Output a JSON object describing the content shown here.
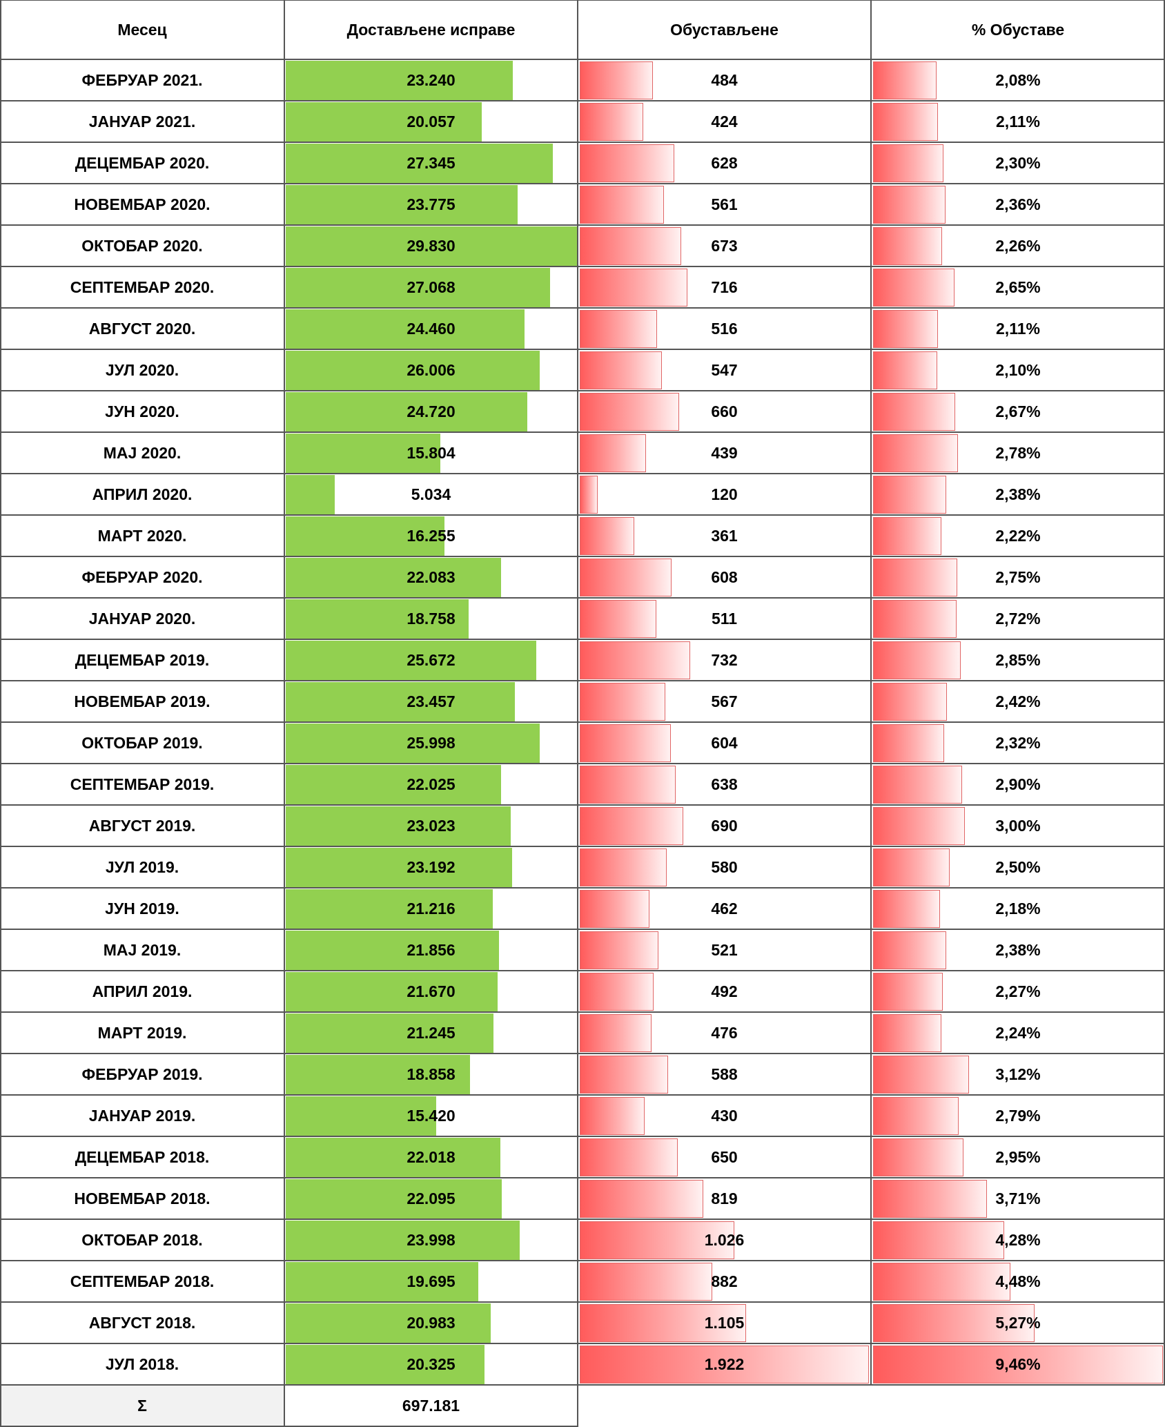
{
  "chart_data": {
    "type": "table",
    "columns": [
      "Месец",
      "Достављене исправе",
      "Обустављене",
      "% Обуставе"
    ],
    "rows": [
      {
        "month": "ФЕБРУАР 2021.",
        "delivered": 23240,
        "delivered_label": "23.240",
        "suspended": 484,
        "suspended_label": "484",
        "pct": 2.08,
        "pct_label": "2,08%"
      },
      {
        "month": "JАНУАР 2021.",
        "delivered": 20057,
        "delivered_label": "20.057",
        "suspended": 424,
        "suspended_label": "424",
        "pct": 2.11,
        "pct_label": "2,11%"
      },
      {
        "month": "ДЕЦЕМБАР 2020.",
        "delivered": 27345,
        "delivered_label": "27.345",
        "suspended": 628,
        "suspended_label": "628",
        "pct": 2.3,
        "pct_label": "2,30%"
      },
      {
        "month": "НОВЕМБАР 2020.",
        "delivered": 23775,
        "delivered_label": "23.775",
        "suspended": 561,
        "suspended_label": "561",
        "pct": 2.36,
        "pct_label": "2,36%"
      },
      {
        "month": "ОКТОБАР 2020.",
        "delivered": 29830,
        "delivered_label": "29.830",
        "suspended": 673,
        "suspended_label": "673",
        "pct": 2.26,
        "pct_label": "2,26%"
      },
      {
        "month": "СЕПТЕМБАР 2020.",
        "delivered": 27068,
        "delivered_label": "27.068",
        "suspended": 716,
        "suspended_label": "716",
        "pct": 2.65,
        "pct_label": "2,65%"
      },
      {
        "month": "АВГУСТ 2020.",
        "delivered": 24460,
        "delivered_label": "24.460",
        "suspended": 516,
        "suspended_label": "516",
        "pct": 2.11,
        "pct_label": "2,11%"
      },
      {
        "month": "ЈУЛ 2020.",
        "delivered": 26006,
        "delivered_label": "26.006",
        "suspended": 547,
        "suspended_label": "547",
        "pct": 2.1,
        "pct_label": "2,10%"
      },
      {
        "month": "ЈУН 2020.",
        "delivered": 24720,
        "delivered_label": "24.720",
        "suspended": 660,
        "suspended_label": "660",
        "pct": 2.67,
        "pct_label": "2,67%"
      },
      {
        "month": "МАЈ 2020.",
        "delivered": 15804,
        "delivered_label": "15.804",
        "suspended": 439,
        "suspended_label": "439",
        "pct": 2.78,
        "pct_label": "2,78%"
      },
      {
        "month": "АПРИЛ 2020.",
        "delivered": 5034,
        "delivered_label": "5.034",
        "suspended": 120,
        "suspended_label": "120",
        "pct": 2.38,
        "pct_label": "2,38%"
      },
      {
        "month": "МАРТ 2020.",
        "delivered": 16255,
        "delivered_label": "16.255",
        "suspended": 361,
        "suspended_label": "361",
        "pct": 2.22,
        "pct_label": "2,22%"
      },
      {
        "month": "ФЕБРУАР 2020.",
        "delivered": 22083,
        "delivered_label": "22.083",
        "suspended": 608,
        "suspended_label": "608",
        "pct": 2.75,
        "pct_label": "2,75%"
      },
      {
        "month": "JАНУАР 2020.",
        "delivered": 18758,
        "delivered_label": "18.758",
        "suspended": 511,
        "suspended_label": "511",
        "pct": 2.72,
        "pct_label": "2,72%"
      },
      {
        "month": "ДЕЦЕМБАР 2019.",
        "delivered": 25672,
        "delivered_label": "25.672",
        "suspended": 732,
        "suspended_label": "732",
        "pct": 2.85,
        "pct_label": "2,85%"
      },
      {
        "month": "НОВЕМБАР 2019.",
        "delivered": 23457,
        "delivered_label": "23.457",
        "suspended": 567,
        "suspended_label": "567",
        "pct": 2.42,
        "pct_label": "2,42%"
      },
      {
        "month": "ОКТОБАР 2019.",
        "delivered": 25998,
        "delivered_label": "25.998",
        "suspended": 604,
        "suspended_label": "604",
        "pct": 2.32,
        "pct_label": "2,32%"
      },
      {
        "month": "СЕПТЕМБАР 2019.",
        "delivered": 22025,
        "delivered_label": "22.025",
        "suspended": 638,
        "suspended_label": "638",
        "pct": 2.9,
        "pct_label": "2,90%"
      },
      {
        "month": "АВГУСТ 2019.",
        "delivered": 23023,
        "delivered_label": "23.023",
        "suspended": 690,
        "suspended_label": "690",
        "pct": 3.0,
        "pct_label": "3,00%"
      },
      {
        "month": "ЈУЛ 2019.",
        "delivered": 23192,
        "delivered_label": "23.192",
        "suspended": 580,
        "suspended_label": "580",
        "pct": 2.5,
        "pct_label": "2,50%"
      },
      {
        "month": "ЈУН 2019.",
        "delivered": 21216,
        "delivered_label": "21.216",
        "suspended": 462,
        "suspended_label": "462",
        "pct": 2.18,
        "pct_label": "2,18%"
      },
      {
        "month": "МАЈ 2019.",
        "delivered": 21856,
        "delivered_label": "21.856",
        "suspended": 521,
        "suspended_label": "521",
        "pct": 2.38,
        "pct_label": "2,38%"
      },
      {
        "month": "АПРИЛ 2019.",
        "delivered": 21670,
        "delivered_label": "21.670",
        "suspended": 492,
        "suspended_label": "492",
        "pct": 2.27,
        "pct_label": "2,27%"
      },
      {
        "month": "МАРТ 2019.",
        "delivered": 21245,
        "delivered_label": "21.245",
        "suspended": 476,
        "suspended_label": "476",
        "pct": 2.24,
        "pct_label": "2,24%"
      },
      {
        "month": "ФЕБРУАР 2019.",
        "delivered": 18858,
        "delivered_label": "18.858",
        "suspended": 588,
        "suspended_label": "588",
        "pct": 3.12,
        "pct_label": "3,12%"
      },
      {
        "month": "JАНУАР 2019.",
        "delivered": 15420,
        "delivered_label": "15.420",
        "suspended": 430,
        "suspended_label": "430",
        "pct": 2.79,
        "pct_label": "2,79%"
      },
      {
        "month": "ДЕЦЕМБАР 2018.",
        "delivered": 22018,
        "delivered_label": "22.018",
        "suspended": 650,
        "suspended_label": "650",
        "pct": 2.95,
        "pct_label": "2,95%"
      },
      {
        "month": "НОВЕМБАР 2018.",
        "delivered": 22095,
        "delivered_label": "22.095",
        "suspended": 819,
        "suspended_label": "819",
        "pct": 3.71,
        "pct_label": "3,71%"
      },
      {
        "month": "ОКТОБАР 2018.",
        "delivered": 23998,
        "delivered_label": "23.998",
        "suspended": 1026,
        "suspended_label": "1.026",
        "pct": 4.28,
        "pct_label": "4,28%"
      },
      {
        "month": "СЕПТЕМБАР 2018.",
        "delivered": 19695,
        "delivered_label": "19.695",
        "suspended": 882,
        "suspended_label": "882",
        "pct": 4.48,
        "pct_label": "4,48%"
      },
      {
        "month": "АВГУСТ 2018.",
        "delivered": 20983,
        "delivered_label": "20.983",
        "suspended": 1105,
        "suspended_label": "1.105",
        "pct": 5.27,
        "pct_label": "5,27%"
      },
      {
        "month": "ЈУЛ 2018.",
        "delivered": 20325,
        "delivered_label": "20.325",
        "suspended": 1922,
        "suspended_label": "1.922",
        "pct": 9.46,
        "pct_label": "9,46%"
      }
    ],
    "total_label": "Σ",
    "total_delivered_label": "697.181",
    "colors": {
      "delivered_bar": "#92d050",
      "suspended_bar": "#ff5b5b",
      "grid": "#555555",
      "total_bg": "#f2f2f2"
    }
  }
}
